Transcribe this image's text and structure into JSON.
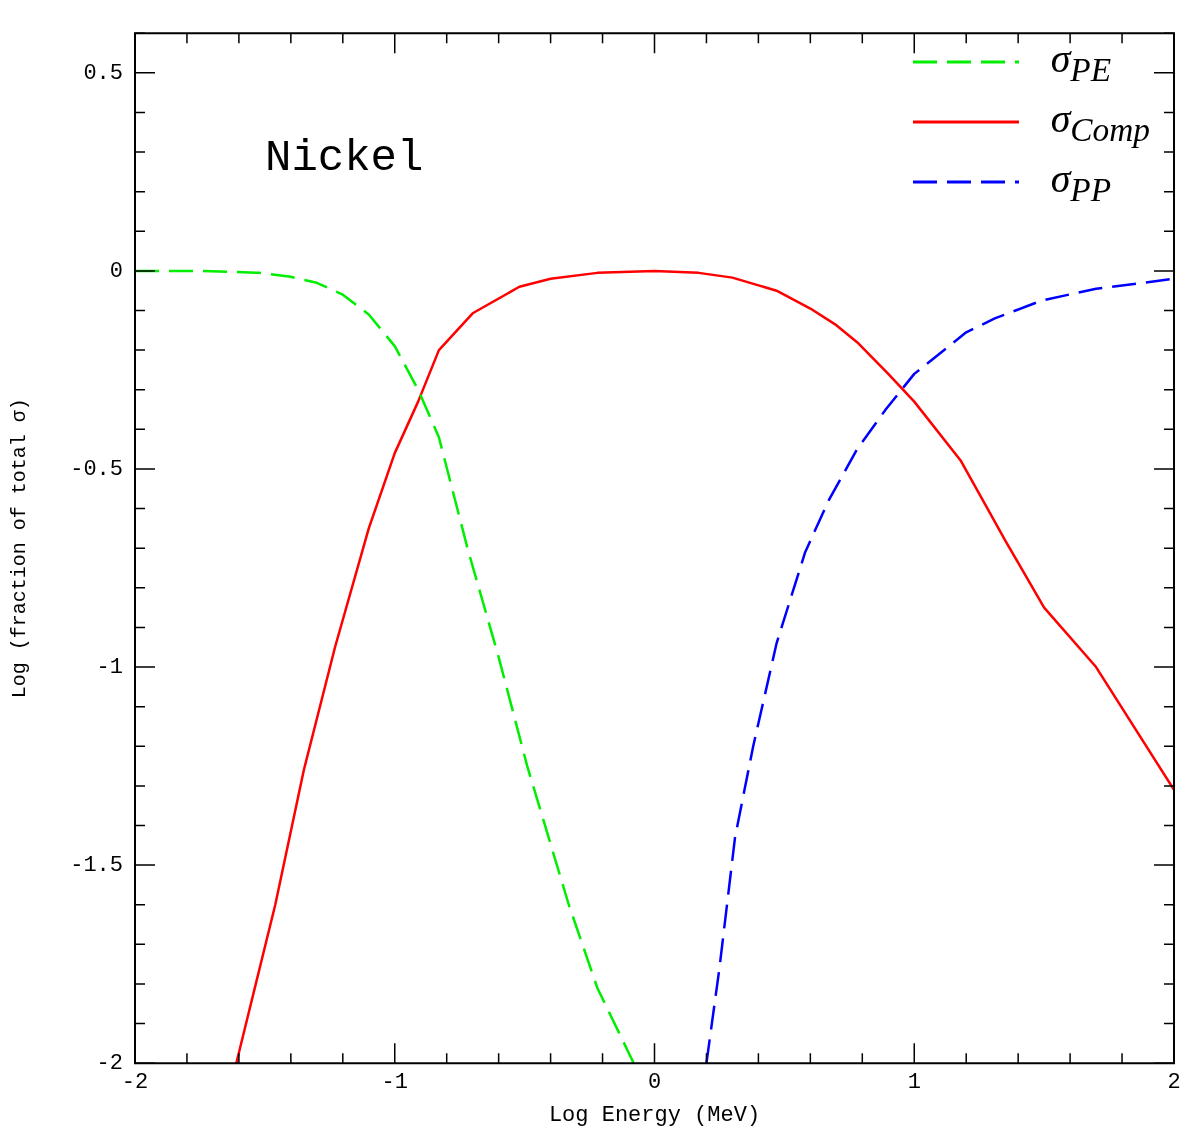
{
  "chart_data": {
    "type": "line",
    "xlabel": "Log Energy (MeV)",
    "ylabel": "Log (fraction of total σ)",
    "annotations": [
      "Nickel"
    ],
    "xlim": [
      -2,
      2
    ],
    "ylim": [
      -2,
      0.6
    ],
    "xticks": [
      -2,
      {
        "value": -1.8,
        "label": null
      },
      {
        "value": -1.6,
        "label": null
      },
      {
        "value": -1.4,
        "label": null
      },
      {
        "value": -1.2,
        "label": null
      },
      -1,
      {
        "value": -0.8,
        "label": null
      },
      {
        "value": -0.6,
        "label": null
      },
      {
        "value": -0.4,
        "label": null
      },
      {
        "value": -0.2,
        "label": null
      },
      0,
      {
        "value": 0.2,
        "label": null
      },
      {
        "value": 0.4,
        "label": null
      },
      {
        "value": 0.6,
        "label": null
      },
      {
        "value": 0.8,
        "label": null
      },
      1,
      {
        "value": 1.2,
        "label": null
      },
      {
        "value": 1.4,
        "label": null
      },
      {
        "value": 1.6,
        "label": null
      },
      {
        "value": 1.8,
        "label": null
      },
      2
    ],
    "yticks": [
      -2,
      {
        "value": -1.9,
        "label": null
      },
      {
        "value": -1.8,
        "label": null
      },
      {
        "value": -1.7,
        "label": null
      },
      {
        "value": -1.6,
        "label": null
      },
      -1.5,
      {
        "value": -1.4,
        "label": null
      },
      {
        "value": -1.3,
        "label": null
      },
      {
        "value": -1.2,
        "label": null
      },
      {
        "value": -1.1,
        "label": null
      },
      -1,
      {
        "value": -0.9,
        "label": null
      },
      {
        "value": -0.8,
        "label": null
      },
      {
        "value": -0.7,
        "label": null
      },
      {
        "value": -0.6,
        "label": null
      },
      -0.5,
      {
        "value": -0.4,
        "label": null
      },
      {
        "value": -0.3,
        "label": null
      },
      {
        "value": -0.2,
        "label": null
      },
      {
        "value": -0.1,
        "label": null
      },
      0,
      {
        "value": 0.1,
        "label": null
      },
      {
        "value": 0.2,
        "label": null
      },
      {
        "value": 0.3,
        "label": null
      },
      {
        "value": 0.4,
        "label": null
      },
      0.5,
      {
        "value": 0.6,
        "label": null
      }
    ],
    "grid": false,
    "legend": "top right",
    "marker": "none",
    "series": [
      {
        "name": "σ$_{PE}$",
        "color": "#00ee00",
        "line_style": "dashed",
        "x": [
          -2,
          -1.75,
          -1.52,
          -1.4,
          -1.3,
          -1.2,
          -1.1,
          -1.0,
          -0.91,
          -0.83,
          -0.72,
          -0.6,
          -0.49,
          -0.33,
          -0.22,
          -0.08
        ],
        "values": [
          0,
          0,
          -0.005,
          -0.015,
          -0.03,
          -0.06,
          -0.11,
          -0.19,
          -0.3,
          -0.42,
          -0.7,
          -0.975,
          -1.25,
          -1.6,
          -1.81,
          -2.0
        ]
      },
      {
        "name": "σ$_{Comp}$",
        "color": "#ff0000",
        "line_style": "solid",
        "x": [
          -1.61,
          -1.46,
          -1.35,
          -1.23,
          -1.1,
          -1.0,
          -0.91,
          -0.83,
          -0.7,
          -0.52,
          -0.4,
          -0.22,
          0,
          0.17,
          0.3,
          0.47,
          0.6,
          0.7,
          0.78,
          0.9,
          1.0,
          1.18,
          1.35,
          1.5,
          1.7,
          2.0
        ],
        "values": [
          -2.0,
          -1.6,
          -1.26,
          -0.95,
          -0.65,
          -0.46,
          -0.33,
          -0.2,
          -0.107,
          -0.04,
          -0.02,
          -0.005,
          0,
          -0.005,
          -0.017,
          -0.05,
          -0.095,
          -0.137,
          -0.18,
          -0.26,
          -0.33,
          -0.48,
          -0.68,
          -0.85,
          -1.0,
          -1.31
        ]
      },
      {
        "name": "σ$_{PP}$",
        "color": "#0000ff",
        "line_style": "dashed",
        "x": [
          0.2,
          0.25,
          0.31,
          0.38,
          0.47,
          0.58,
          0.67,
          0.78,
          0.89,
          1.0,
          1.2,
          1.31,
          1.49,
          1.7,
          2.0
        ],
        "values": [
          -2.0,
          -1.76,
          -1.43,
          -1.2,
          -0.94,
          -0.71,
          -0.58,
          -0.45,
          -0.35,
          -0.26,
          -0.155,
          -0.12,
          -0.075,
          -0.045,
          -0.02
        ]
      }
    ]
  }
}
